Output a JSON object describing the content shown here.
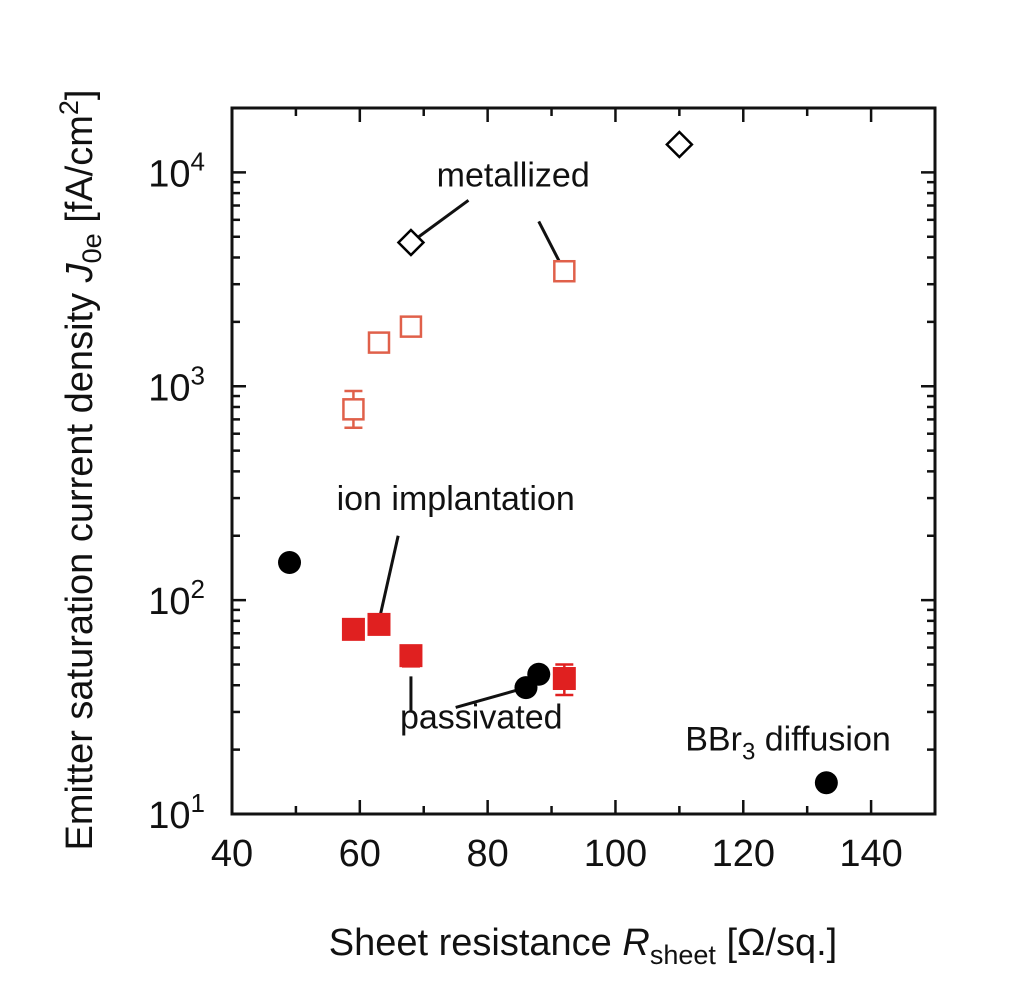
{
  "chart_data": {
    "type": "scatter",
    "xlabel": {
      "text": "Sheet resistance ",
      "italic": "R",
      "sub": "sheet",
      "unit": " [Ω/sq.]"
    },
    "ylabel": {
      "text": "Emitter saturation current density ",
      "italic": "J",
      "sub": "0e",
      "unit": " [fA/cm",
      "sup": "2",
      "close": "]"
    },
    "xlim": [
      40,
      150
    ],
    "ylim": [
      10,
      20000
    ],
    "yscale": "log",
    "x_ticks": [
      40,
      60,
      80,
      100,
      120,
      140
    ],
    "x_tick_labels": [
      "40",
      "60",
      "80",
      "100",
      "120",
      "140"
    ],
    "y_ticks": [
      10,
      100,
      1000,
      10000
    ],
    "y_tick_labels": [
      {
        "base": "10",
        "exp": "1"
      },
      {
        "base": "10",
        "exp": "2"
      },
      {
        "base": "10",
        "exp": "3"
      },
      {
        "base": "10",
        "exp": "4"
      }
    ],
    "grid": false,
    "legend": "none",
    "series": [
      {
        "marker": "open-square",
        "color": "#e0604a",
        "points": [
          {
            "x": 59,
            "y": 780,
            "ylo": 640,
            "yhi": 950
          },
          {
            "x": 63,
            "y": 1600,
            "ylo": 1450,
            "yhi": 1780
          },
          {
            "x": 68,
            "y": 1900,
            "ylo": 1760,
            "yhi": 2050
          },
          {
            "x": 92,
            "y": 3450,
            "ylo": 3250,
            "yhi": 3650
          }
        ]
      },
      {
        "marker": "filled-square",
        "color": "#e02020",
        "points": [
          {
            "x": 59,
            "y": 73,
            "ylo": 66,
            "yhi": 80
          },
          {
            "x": 63,
            "y": 77,
            "ylo": 70,
            "yhi": 84
          },
          {
            "x": 68,
            "y": 55,
            "ylo": 49,
            "yhi": 61
          },
          {
            "x": 92,
            "y": 43,
            "ylo": 36,
            "yhi": 50
          }
        ]
      },
      {
        "marker": "filled-circle",
        "color": "#000000",
        "points": [
          {
            "x": 49,
            "y": 150
          },
          {
            "x": 86,
            "y": 39
          },
          {
            "x": 88,
            "y": 45
          },
          {
            "x": 133,
            "y": 14
          }
        ]
      },
      {
        "marker": "open-diamond",
        "color": "#000000",
        "points": [
          {
            "x": 68,
            "y": 4700
          },
          {
            "x": 110,
            "y": 13500
          }
        ]
      }
    ],
    "annotations": [
      {
        "key": "metallized",
        "text": "metallized",
        "ax": 84,
        "ay": 9800,
        "anchor": "middle",
        "leaders": [
          [
            77,
            7400,
            68,
            4700
          ],
          [
            88,
            5900,
            92,
            3450
          ]
        ]
      },
      {
        "key": "ion_implantation",
        "text": "ion implantation",
        "ax": 75,
        "ay": 300,
        "anchor": "middle",
        "leaders": [
          [
            66,
            200,
            63,
            80
          ]
        ]
      },
      {
        "key": "passivated",
        "text": "passivated",
        "ax": 79,
        "ay": 28.5,
        "anchor": "middle",
        "leaders": [
          [
            68,
            44,
            68,
            30
          ],
          [
            75,
            31.5,
            86,
            39
          ]
        ]
      },
      {
        "key": "bbr3",
        "text": "BBr",
        "sub": "3",
        "tail": " diffusion",
        "ax": 127,
        "ay": 22.5,
        "anchor": "middle",
        "leaders": []
      }
    ]
  }
}
